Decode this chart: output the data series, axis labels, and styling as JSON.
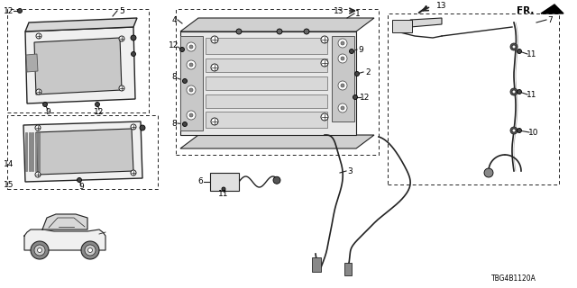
{
  "background_color": "#ffffff",
  "diagram_code": "TBG4B1120A",
  "figsize": [
    6.4,
    3.2
  ],
  "dpi": 100,
  "line_color": "#222222",
  "light_fill": "#e8e8e8",
  "mid_fill": "#cccccc",
  "dark_fill": "#888888"
}
